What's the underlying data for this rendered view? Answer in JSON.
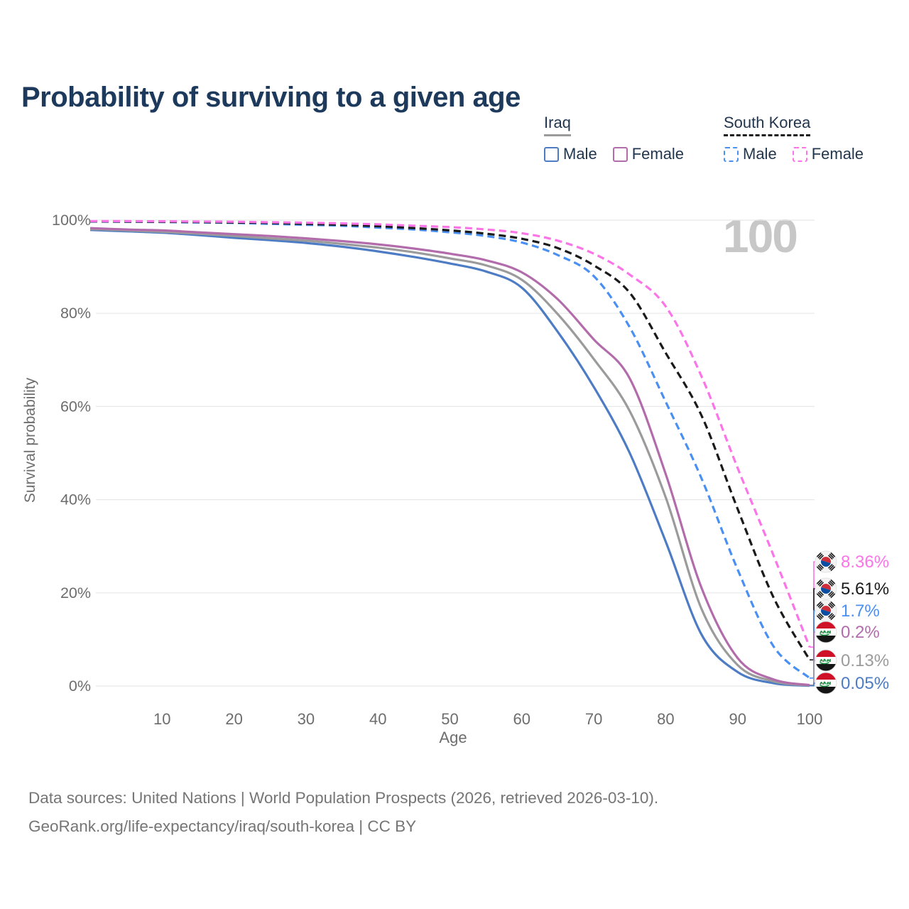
{
  "title": "Probability of surviving to a given age",
  "watermark": "100",
  "legend": {
    "position": "top-right",
    "groups": [
      {
        "name": "Iraq",
        "underline_color": "#9b9b9b",
        "underline_style": "solid",
        "items": [
          {
            "label": "Male",
            "color": "#4d7cc4",
            "dash": false
          },
          {
            "label": "Female",
            "color": "#b36cab",
            "dash": false
          }
        ]
      },
      {
        "name": "South Korea",
        "underline_color": "#1a1a1a",
        "underline_style": "dashed",
        "items": [
          {
            "label": "Male",
            "color": "#4a90f2",
            "dash": true
          },
          {
            "label": "Female",
            "color": "#fb74e8",
            "dash": true
          }
        ]
      }
    ]
  },
  "chart_data": {
    "type": "line",
    "title": "Probability of surviving to a given age",
    "xlabel": "Age",
    "ylabel": "Survival probability",
    "xlim": [
      0,
      100
    ],
    "ylim": [
      0,
      100
    ],
    "grid": true,
    "legend_position": "top-right",
    "x_ticks": [
      10,
      20,
      30,
      40,
      50,
      60,
      70,
      80,
      90,
      100
    ],
    "y_ticks": [
      "0%",
      "20%",
      "40%",
      "60%",
      "80%",
      "100%"
    ],
    "y_tick_values": [
      0,
      20,
      40,
      60,
      80,
      100
    ],
    "x": [
      0,
      5,
      10,
      15,
      20,
      25,
      30,
      35,
      40,
      45,
      50,
      55,
      60,
      65,
      70,
      75,
      80,
      85,
      90,
      95,
      100
    ],
    "series": [
      {
        "name": "Iraq Male",
        "country": "Iraq",
        "sex": "Male",
        "color": "#4d7cc4",
        "dash": false,
        "flag": "iq",
        "end_label": "0.05%",
        "values": [
          97.9,
          97.6,
          97.3,
          96.8,
          96.2,
          95.7,
          95.1,
          94.3,
          93.3,
          92.1,
          90.7,
          89.0,
          85.5,
          76.0,
          64.2,
          50.0,
          31.0,
          11.0,
          3.0,
          0.6,
          0.05
        ]
      },
      {
        "name": "Iraq (both sexes)",
        "country": "Iraq",
        "sex": "Total",
        "color": "#9b9b9b",
        "dash": false,
        "flag": "iq",
        "end_label": "0.13%",
        "values": [
          98.1,
          97.8,
          97.5,
          97.1,
          96.6,
          96.1,
          95.6,
          94.9,
          94.1,
          93.1,
          91.8,
          90.3,
          87.2,
          79.8,
          70.2,
          59.0,
          40.5,
          16.5,
          4.5,
          1.0,
          0.13
        ]
      },
      {
        "name": "Iraq Female",
        "country": "Iraq",
        "sex": "Female",
        "color": "#b36cab",
        "dash": false,
        "flag": "iq",
        "end_label": "0.2%",
        "values": [
          98.3,
          98.0,
          97.8,
          97.4,
          97.0,
          96.6,
          96.1,
          95.5,
          94.8,
          93.9,
          92.8,
          91.4,
          88.8,
          83.0,
          74.4,
          66.0,
          45.5,
          21.0,
          6.0,
          1.4,
          0.2
        ]
      },
      {
        "name": "South Korea Male",
        "country": "South Korea",
        "sex": "Male",
        "color": "#4a90f2",
        "dash": true,
        "flag": "kr",
        "end_label": "1.7%",
        "values": [
          99.7,
          99.65,
          99.6,
          99.5,
          99.4,
          99.2,
          99.0,
          98.8,
          98.4,
          98.0,
          97.4,
          96.6,
          95.2,
          92.5,
          88.0,
          77.0,
          61.0,
          44.5,
          25.0,
          8.5,
          1.7
        ]
      },
      {
        "name": "South Korea (both sexes)",
        "country": "South Korea",
        "sex": "Total",
        "color": "#1a1a1a",
        "dash": true,
        "flag": "kr",
        "end_label": "5.61%",
        "values": [
          99.75,
          99.7,
          99.65,
          99.6,
          99.5,
          99.4,
          99.2,
          99.0,
          98.7,
          98.3,
          97.8,
          97.1,
          96.0,
          94.0,
          90.3,
          84.4,
          71.5,
          58.0,
          38.0,
          19.0,
          5.61
        ]
      },
      {
        "name": "South Korea Female",
        "country": "South Korea",
        "sex": "Female",
        "color": "#fb74e8",
        "dash": true,
        "flag": "kr",
        "end_label": "8.36%",
        "values": [
          99.8,
          99.78,
          99.75,
          99.7,
          99.65,
          99.55,
          99.45,
          99.3,
          99.1,
          98.8,
          98.5,
          98.0,
          97.2,
          95.6,
          92.8,
          88.3,
          81.5,
          66.4,
          46.8,
          28.0,
          8.36
        ]
      }
    ],
    "end_labels_top_to_bottom": [
      "8.36%",
      "5.61%",
      "1.7%",
      "0.2%",
      "0.13%",
      "0.05%"
    ]
  },
  "footer": {
    "line1": "Data sources: United Nations | World Population Prospects (2026, retrieved 2026-03-10).",
    "line2": "GeoRank.org/life-expectancy/iraq/south-korea | CC BY"
  }
}
